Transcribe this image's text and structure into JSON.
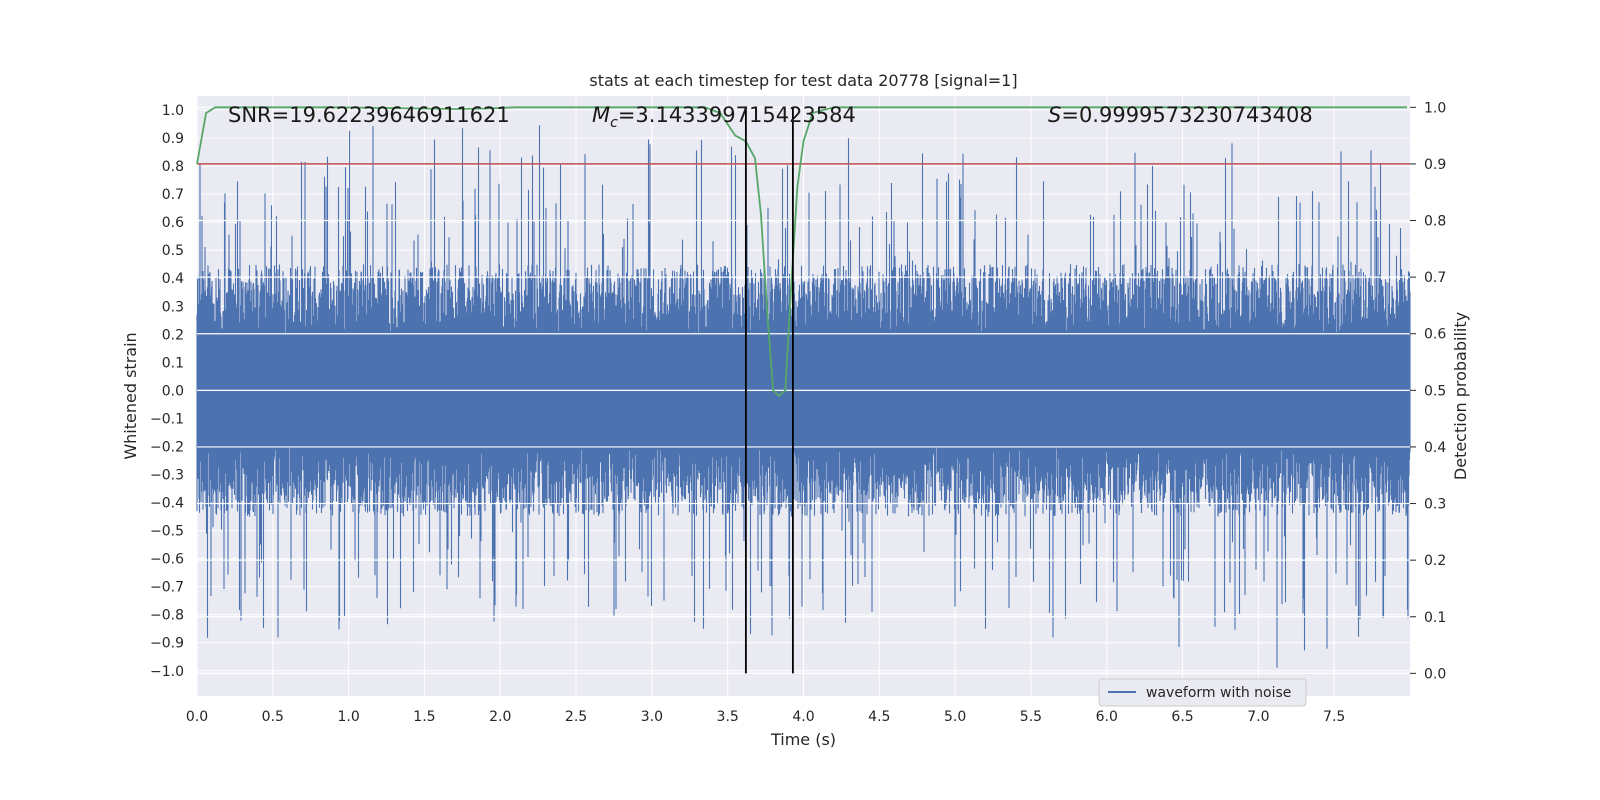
{
  "chart_data": {
    "type": "line",
    "title": "stats at each timestep for test data 20778 [signal=1]",
    "xlabel": "Time (s)",
    "ylabel_left": "Whitened strain",
    "ylabel_right": "Detection probability",
    "xlim": [
      0.0,
      8.0
    ],
    "ylim_left": [
      -1.09,
      1.05
    ],
    "ylim_right": [
      -0.04,
      1.02
    ],
    "x_ticks": [
      0.0,
      0.5,
      1.0,
      1.5,
      2.0,
      2.5,
      3.0,
      3.5,
      4.0,
      4.5,
      5.0,
      5.5,
      6.0,
      6.5,
      7.0,
      7.5
    ],
    "x_tick_labels": [
      "0.0",
      "0.5",
      "1.0",
      "1.5",
      "2.0",
      "2.5",
      "3.0",
      "3.5",
      "4.0",
      "4.5",
      "5.0",
      "5.5",
      "6.0",
      "6.5",
      "7.0",
      "7.5"
    ],
    "y_left_ticks": [
      1.0,
      0.9,
      0.8,
      0.7,
      0.6,
      0.5,
      0.4,
      0.3,
      0.2,
      0.1,
      0.0,
      -0.1,
      -0.2,
      -0.3,
      -0.4,
      -0.5,
      -0.6,
      -0.7,
      -0.8,
      -0.9,
      -1.0
    ],
    "y_left_tick_labels": [
      "1.0",
      "0.9",
      "0.8",
      "0.7",
      "0.6",
      "0.5",
      "0.4",
      "0.3",
      "0.2",
      "0.1",
      "0.0",
      "−0.1",
      "−0.2",
      "−0.3",
      "−0.4",
      "−0.5",
      "−0.6",
      "−0.7",
      "−0.8",
      "−0.9",
      "−1.0"
    ],
    "y_right_ticks": [
      1.0,
      0.9,
      0.8,
      0.7,
      0.6,
      0.5,
      0.4,
      0.3,
      0.2,
      0.1,
      0.0
    ],
    "y_right_tick_labels": [
      "1.0",
      "0.9",
      "0.8",
      "0.7",
      "0.6",
      "0.5",
      "0.4",
      "0.3",
      "0.2",
      "0.1",
      "0.0"
    ],
    "annotations": {
      "snr": "SNR=19.62239646911621",
      "mc_symbol": "M",
      "mc_sub": "c",
      "mc_value": "=3.143399715423584",
      "s_symbol": "S",
      "s_value": "=0.9999573230743408"
    },
    "legend": {
      "label": "waveform with noise",
      "position": "lower-right"
    },
    "threshold_right": 0.9,
    "signal_window_x": [
      3.62,
      3.93
    ],
    "waveform": {
      "name": "waveform with noise",
      "typical_amplitude": 0.36,
      "max_peak": 0.97,
      "min_trough": -1.0,
      "seed": 20778
    },
    "probability_series": {
      "name": "detection probability",
      "x": [
        0.0,
        0.06,
        0.12,
        0.3,
        0.6,
        0.9,
        1.2,
        1.5,
        1.7,
        1.9,
        2.1,
        2.4,
        2.7,
        3.0,
        3.2,
        3.35,
        3.45,
        3.55,
        3.62,
        3.68,
        3.72,
        3.76,
        3.8,
        3.84,
        3.88,
        3.92,
        3.96,
        4.0,
        4.06,
        4.2,
        4.6,
        5.0,
        5.5,
        6.0,
        6.5,
        7.0,
        7.5,
        7.98
      ],
      "y": [
        0.9,
        0.99,
        1.0,
        1.0,
        1.0,
        1.0,
        0.999,
        0.998,
        0.997,
        0.998,
        1.0,
        1.0,
        1.0,
        1.0,
        1.0,
        1.0,
        0.99,
        0.95,
        0.94,
        0.91,
        0.81,
        0.64,
        0.5,
        0.49,
        0.5,
        0.69,
        0.86,
        0.94,
        0.99,
        1.0,
        1.0,
        1.0,
        1.0,
        1.0,
        1.0,
        1.0,
        1.0,
        1.0
      ]
    },
    "colors": {
      "waveform": "#4c72b0",
      "probability": "#55a868",
      "threshold": "#c44e52",
      "window": "#000000",
      "plot_bg": "#eaeaf2",
      "grid": "#ffffff",
      "text": "#262626"
    }
  }
}
